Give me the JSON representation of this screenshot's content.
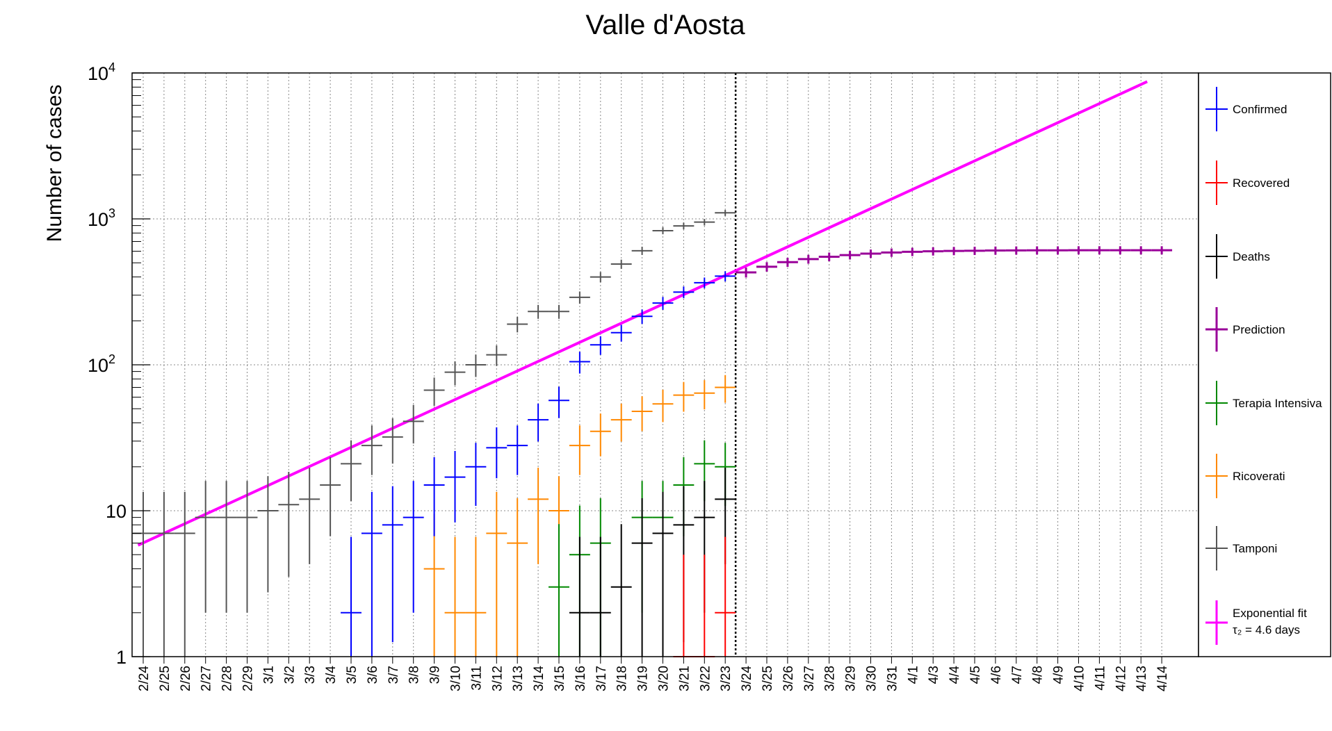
{
  "chart_data": {
    "type": "scatter",
    "title": "Valle d'Aosta",
    "xlabel": "",
    "ylabel": "Number of cases",
    "y_scale": "log",
    "ylim": [
      1,
      10000
    ],
    "y_ticks": [
      {
        "value": 1,
        "label": "1"
      },
      {
        "value": 10,
        "label": "10"
      },
      {
        "value": 100,
        "label": "10",
        "exp": "2"
      },
      {
        "value": 1000,
        "label": "10",
        "exp": "3"
      },
      {
        "value": 10000,
        "label": "10",
        "exp": "4"
      }
    ],
    "x_categories": [
      "2/24",
      "2/25",
      "2/26",
      "2/27",
      "2/28",
      "2/29",
      "3/1",
      "3/2",
      "3/3",
      "3/4",
      "3/5",
      "3/6",
      "3/7",
      "3/8",
      "3/9",
      "3/10",
      "3/11",
      "3/12",
      "3/13",
      "3/14",
      "3/15",
      "3/16",
      "3/17",
      "3/18",
      "3/19",
      "3/20",
      "3/21",
      "3/22",
      "3/23",
      "3/24",
      "3/25",
      "3/26",
      "3/27",
      "3/28",
      "3/29",
      "3/30",
      "3/31",
      "4/1",
      "4/3",
      "4/4",
      "4/5",
      "4/6",
      "4/7",
      "4/8",
      "4/9",
      "4/10",
      "4/11",
      "4/12",
      "4/13",
      "4/14"
    ],
    "grid": true,
    "legend_position": "right",
    "today_marker": "3/23",
    "colors": {
      "Confirmed": "#0000ff",
      "Recovered": "#ff0000",
      "Deaths": "#000000",
      "Prediction": "#990099",
      "Terapia Intensiva": "#008800",
      "Ricoverati": "#ff8800",
      "Tamponi": "#555555",
      "Exponential fit": "#ff00ff"
    },
    "series": [
      {
        "name": "Confirmed",
        "points": [
          [
            10,
            2
          ],
          [
            11,
            7
          ],
          [
            12,
            8
          ],
          [
            13,
            9
          ],
          [
            14,
            15
          ],
          [
            15,
            17
          ],
          [
            16,
            20
          ],
          [
            17,
            27
          ],
          [
            18,
            28
          ],
          [
            19,
            42
          ],
          [
            20,
            57
          ],
          [
            21,
            105
          ],
          [
            22,
            137
          ],
          [
            23,
            166
          ],
          [
            24,
            215
          ],
          [
            25,
            265
          ],
          [
            26,
            315
          ],
          [
            27,
            365
          ],
          [
            28,
            405
          ]
        ]
      },
      {
        "name": "Recovered",
        "points": [
          [
            26,
            1
          ],
          [
            27,
            1
          ],
          [
            28,
            2
          ]
        ]
      },
      {
        "name": "Deaths",
        "points": [
          [
            21,
            2
          ],
          [
            22,
            2
          ],
          [
            23,
            3
          ],
          [
            24,
            6
          ],
          [
            25,
            7
          ],
          [
            26,
            8
          ],
          [
            27,
            9
          ],
          [
            28,
            12
          ]
        ]
      },
      {
        "name": "Prediction",
        "points": [
          [
            29,
            430
          ],
          [
            30,
            470
          ],
          [
            31,
            505
          ],
          [
            32,
            530
          ],
          [
            33,
            550
          ],
          [
            34,
            565
          ],
          [
            35,
            578
          ],
          [
            36,
            588
          ],
          [
            37,
            595
          ],
          [
            38,
            600
          ],
          [
            39,
            603
          ],
          [
            40,
            605
          ],
          [
            41,
            607
          ],
          [
            42,
            608
          ],
          [
            43,
            609
          ],
          [
            44,
            609
          ],
          [
            45,
            610
          ],
          [
            46,
            610
          ],
          [
            47,
            610
          ],
          [
            48,
            610
          ],
          [
            49,
            610
          ]
        ]
      },
      {
        "name": "Terapia Intensiva",
        "points": [
          [
            20,
            3
          ],
          [
            21,
            5
          ],
          [
            22,
            6
          ],
          [
            24,
            9
          ],
          [
            25,
            9
          ],
          [
            26,
            15
          ],
          [
            27,
            21
          ],
          [
            28,
            20
          ]
        ]
      },
      {
        "name": "Ricoverati",
        "points": [
          [
            14,
            4
          ],
          [
            15,
            2
          ],
          [
            16,
            2
          ],
          [
            17,
            7
          ],
          [
            18,
            6
          ],
          [
            19,
            12
          ],
          [
            20,
            10
          ],
          [
            21,
            28
          ],
          [
            22,
            35
          ],
          [
            23,
            42
          ],
          [
            24,
            48
          ],
          [
            25,
            54
          ],
          [
            26,
            62
          ],
          [
            27,
            64
          ],
          [
            28,
            70
          ]
        ]
      },
      {
        "name": "Tamponi",
        "points": [
          [
            0,
            7
          ],
          [
            1,
            7
          ],
          [
            2,
            7
          ],
          [
            3,
            9
          ],
          [
            4,
            9
          ],
          [
            5,
            9
          ],
          [
            6,
            10
          ],
          [
            7,
            11
          ],
          [
            8,
            12
          ],
          [
            9,
            15
          ],
          [
            10,
            21
          ],
          [
            11,
            28
          ],
          [
            12,
            32
          ],
          [
            13,
            41
          ],
          [
            14,
            67
          ],
          [
            15,
            89
          ],
          [
            16,
            100
          ],
          [
            17,
            117
          ],
          [
            18,
            190
          ],
          [
            19,
            232
          ],
          [
            20,
            232
          ],
          [
            21,
            290
          ],
          [
            22,
            400
          ],
          [
            23,
            490
          ],
          [
            24,
            605
          ],
          [
            25,
            830
          ],
          [
            26,
            895
          ],
          [
            27,
            950
          ],
          [
            28,
            1100
          ]
        ]
      },
      {
        "name": "Exponential fit",
        "label_line2": "τ₂ = 4.6 days",
        "fit": {
          "from_index": -0.25,
          "to_index": 48.3,
          "y_at_start": 5.8,
          "doubling_days": 4.6
        }
      }
    ]
  }
}
